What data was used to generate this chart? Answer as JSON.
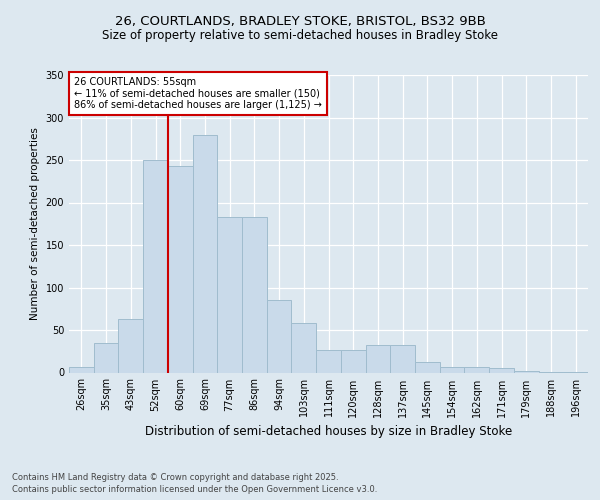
{
  "title1": "26, COURTLANDS, BRADLEY STOKE, BRISTOL, BS32 9BB",
  "title2": "Size of property relative to semi-detached houses in Bradley Stoke",
  "xlabel": "Distribution of semi-detached houses by size in Bradley Stoke",
  "ylabel": "Number of semi-detached properties",
  "categories": [
    "26sqm",
    "35sqm",
    "43sqm",
    "52sqm",
    "60sqm",
    "69sqm",
    "77sqm",
    "86sqm",
    "94sqm",
    "103sqm",
    "111sqm",
    "120sqm",
    "128sqm",
    "137sqm",
    "145sqm",
    "154sqm",
    "162sqm",
    "171sqm",
    "179sqm",
    "188sqm",
    "196sqm"
  ],
  "values": [
    7,
    35,
    63,
    250,
    243,
    280,
    183,
    183,
    85,
    58,
    27,
    27,
    32,
    32,
    12,
    7,
    7,
    5,
    2,
    1,
    1
  ],
  "bar_color": "#c9daea",
  "bar_edge_color": "#a0bcce",
  "vline_index": 4,
  "vline_color": "#cc0000",
  "annotation_text": "26 COURTLANDS: 55sqm\n← 11% of semi-detached houses are smaller (150)\n86% of semi-detached houses are larger (1,125) →",
  "annotation_box_facecolor": "white",
  "annotation_box_edgecolor": "#cc0000",
  "ylim": [
    0,
    350
  ],
  "yticks": [
    0,
    50,
    100,
    150,
    200,
    250,
    300,
    350
  ],
  "footer1": "Contains HM Land Registry data © Crown copyright and database right 2025.",
  "footer2": "Contains public sector information licensed under the Open Government Licence v3.0.",
  "bg_color": "#dde8f0",
  "title1_fontsize": 9.5,
  "title2_fontsize": 8.5,
  "ylabel_fontsize": 7.5,
  "xlabel_fontsize": 8.5,
  "tick_fontsize": 7,
  "footer_fontsize": 6
}
